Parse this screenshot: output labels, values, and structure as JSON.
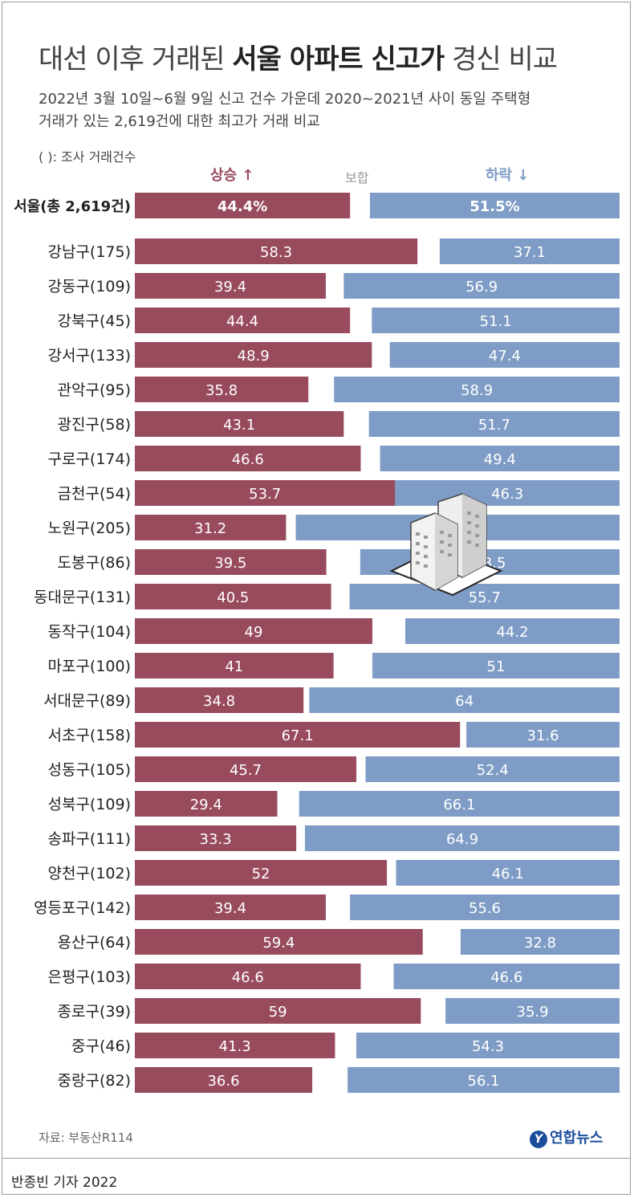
{
  "title": {
    "pre": "대선 이후 거래된 ",
    "bold": "서울 아파트 신고가",
    "post": " 경신 비교"
  },
  "subtitle": [
    "2022년 3월 10일~6월 9일 신고 건수 가운데 2020~2021년 사이 동일 주택형",
    "거래가 있는 2,619건에 대한 최고가 거래 비교"
  ],
  "note": "( ): 조사 거래건수",
  "legend": {
    "up": "상승",
    "flat": "보합",
    "down": "하락"
  },
  "source": "자료: 부동산R114",
  "brand": "연합뉴스",
  "byline": "반종빈 기자  2022",
  "colors": {
    "up": "#984b5d",
    "down": "#7e9cc5",
    "flat": "#ffffff"
  },
  "chart_data": {
    "type": "bar",
    "stacked": true,
    "orientation": "horizontal",
    "series_labels": [
      "상승",
      "보합",
      "하락"
    ],
    "total": {
      "label": "서울(총 2,619건)",
      "up": 44.4,
      "down": 51.5,
      "up_label": "44.4%",
      "down_label": "51.5%"
    },
    "categories": [
      "강남구(175)",
      "강동구(109)",
      "강북구(45)",
      "강서구(133)",
      "관악구(95)",
      "광진구(58)",
      "구로구(174)",
      "금천구(54)",
      "노원구(205)",
      "도봉구(86)",
      "동대문구(131)",
      "동작구(104)",
      "마포구(100)",
      "서대문구(89)",
      "서초구(158)",
      "성동구(105)",
      "성북구(109)",
      "송파구(111)",
      "양천구(102)",
      "영등포구(142)",
      "용산구(64)",
      "은평구(103)",
      "종로구(39)",
      "중구(46)",
      "중랑구(82)"
    ],
    "up": [
      "58.3",
      "39.4",
      "44.4",
      "48.9",
      "35.8",
      "43.1",
      "46.6",
      "53.7",
      "31.2",
      "39.5",
      "40.5",
      "49",
      "41",
      "34.8",
      "67.1",
      "45.7",
      "29.4",
      "33.3",
      "52",
      "39.4",
      "59.4",
      "46.6",
      "59",
      "41.3",
      "36.6"
    ],
    "down": [
      "37.1",
      "56.9",
      "51.1",
      "47.4",
      "58.9",
      "51.7",
      "49.4",
      "46.3",
      "66.8",
      "53.5",
      "55.7",
      "44.2",
      "51",
      "64",
      "31.6",
      "52.4",
      "66.1",
      "64.9",
      "46.1",
      "55.6",
      "32.8",
      "46.6",
      "35.9",
      "54.3",
      "56.1"
    ],
    "xlim": [
      0,
      100
    ]
  }
}
